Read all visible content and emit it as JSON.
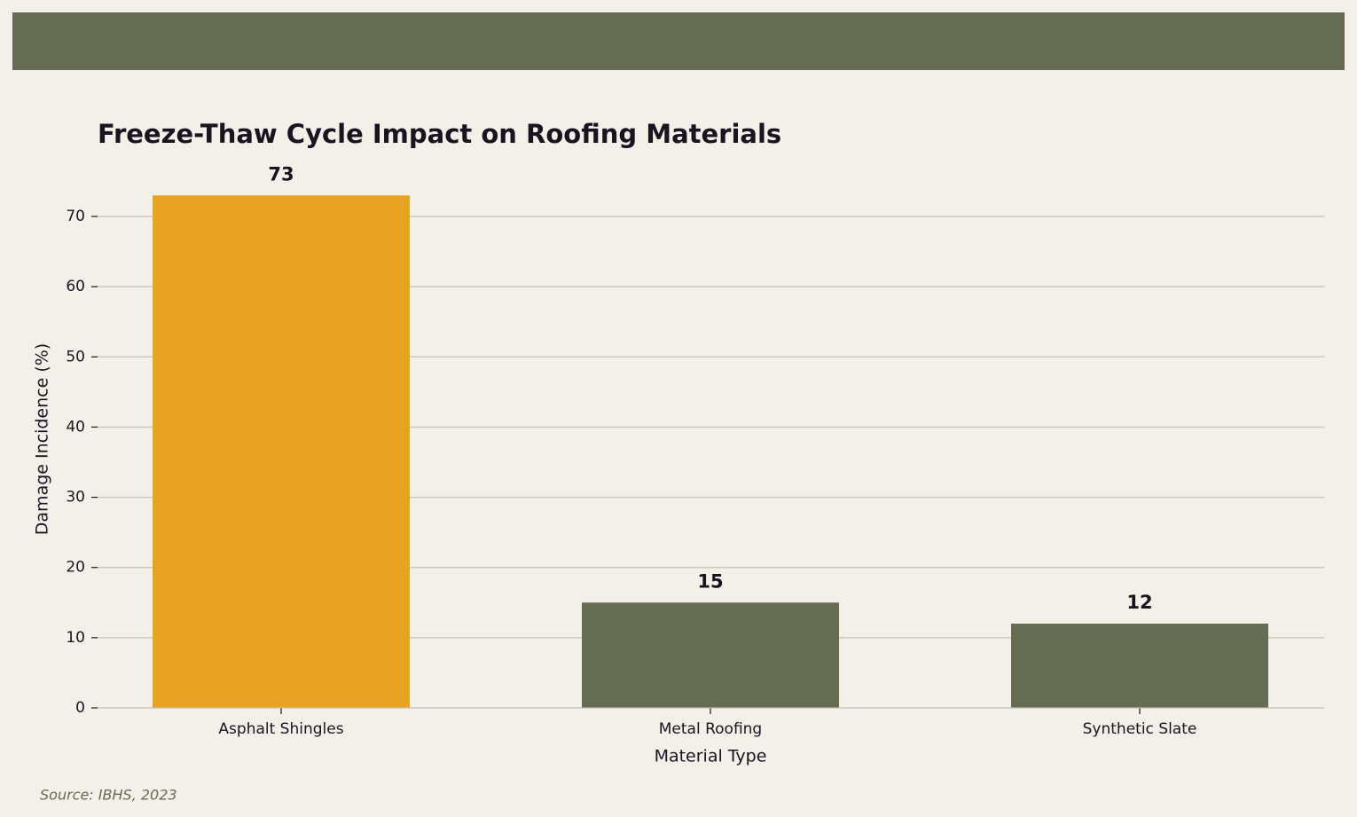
{
  "chart_data": {
    "type": "bar",
    "title": "Freeze-Thaw Cycle Impact on Roofing Materials",
    "x_label": "Material Type",
    "y_label": "Damage Incidence (%)",
    "categories": [
      "Asphalt Shingles",
      "Metal Roofing",
      "Synthetic Slate"
    ],
    "values": [
      73,
      15,
      12
    ],
    "colors": [
      "#e8a323",
      "#666b54",
      "#666b54"
    ],
    "ylim": [
      0,
      76.65
    ],
    "yticks": [
      0,
      10,
      20,
      30,
      40,
      50,
      60,
      70
    ],
    "grid": true,
    "source": "Source: IBHS, 2023"
  }
}
